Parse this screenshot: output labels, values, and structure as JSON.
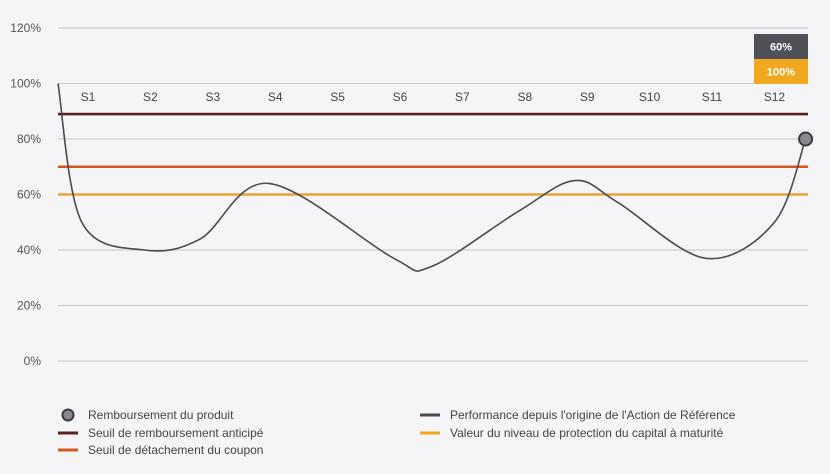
{
  "chart_data": {
    "type": "line",
    "ylim": [
      0,
      120
    ],
    "yticks": [
      0,
      20,
      40,
      60,
      80,
      100,
      120
    ],
    "ytick_labels": [
      "0%",
      "20%",
      "40%",
      "60%",
      "80%",
      "100%",
      "120%"
    ],
    "categories": [
      "S1",
      "S2",
      "S3",
      "S4",
      "S5",
      "S6",
      "S7",
      "S8",
      "S9",
      "S10",
      "S11",
      "S12"
    ],
    "grid": true,
    "series": [
      {
        "name": "Performance depuis l'origine de l'Action de Référence",
        "color": "#4a4a52",
        "points": [
          {
            "x": 0.0,
            "y": 100
          },
          {
            "x": 0.9,
            "y": 50
          },
          {
            "x": 1.9,
            "y": 40
          },
          {
            "x": 2.8,
            "y": 44
          },
          {
            "x": 3.9,
            "y": 64
          },
          {
            "x": 5.9,
            "y": 37
          },
          {
            "x": 6.5,
            "y": 34
          },
          {
            "x": 7.9,
            "y": 54
          },
          {
            "x": 8.8,
            "y": 65
          },
          {
            "x": 9.5,
            "y": 57
          },
          {
            "x": 10.9,
            "y": 37
          },
          {
            "x": 12.0,
            "y": 50
          },
          {
            "x": 12.5,
            "y": 80
          }
        ]
      }
    ],
    "thresholds": [
      {
        "name": "Seuil de remboursement anticipé",
        "value": 89,
        "color": "#5a1f1f"
      },
      {
        "name": "Seuil de détachement du coupon",
        "value": 70,
        "color": "#d4581e"
      },
      {
        "name": "Valeur du niveau de protection du capital à maturité",
        "value": 60,
        "color": "#e8a43a"
      }
    ],
    "marker": {
      "name": "Remboursement du produit",
      "x": 12.5,
      "y": 80,
      "color": "#8a8a8e"
    },
    "boxes": [
      {
        "label": "60%",
        "color": "#4f5058"
      },
      {
        "label": "100%",
        "color": "#f0a81e"
      }
    ],
    "legend": {
      "position": "bottom",
      "items": [
        {
          "label": "Remboursement du produit",
          "kind": "marker",
          "color": "#8a8a8e"
        },
        {
          "label": "Performance depuis l'origine de l'Action de Référence",
          "kind": "line",
          "color": "#4a4a52"
        },
        {
          "label": "Seuil de remboursement anticipé",
          "kind": "line",
          "color": "#5a1f1f"
        },
        {
          "label": "Valeur du niveau de protection du capital à maturité",
          "kind": "line",
          "color": "#f0a81e"
        },
        {
          "label": "Seuil de détachement du coupon",
          "kind": "line",
          "color": "#d4581e"
        }
      ]
    }
  }
}
